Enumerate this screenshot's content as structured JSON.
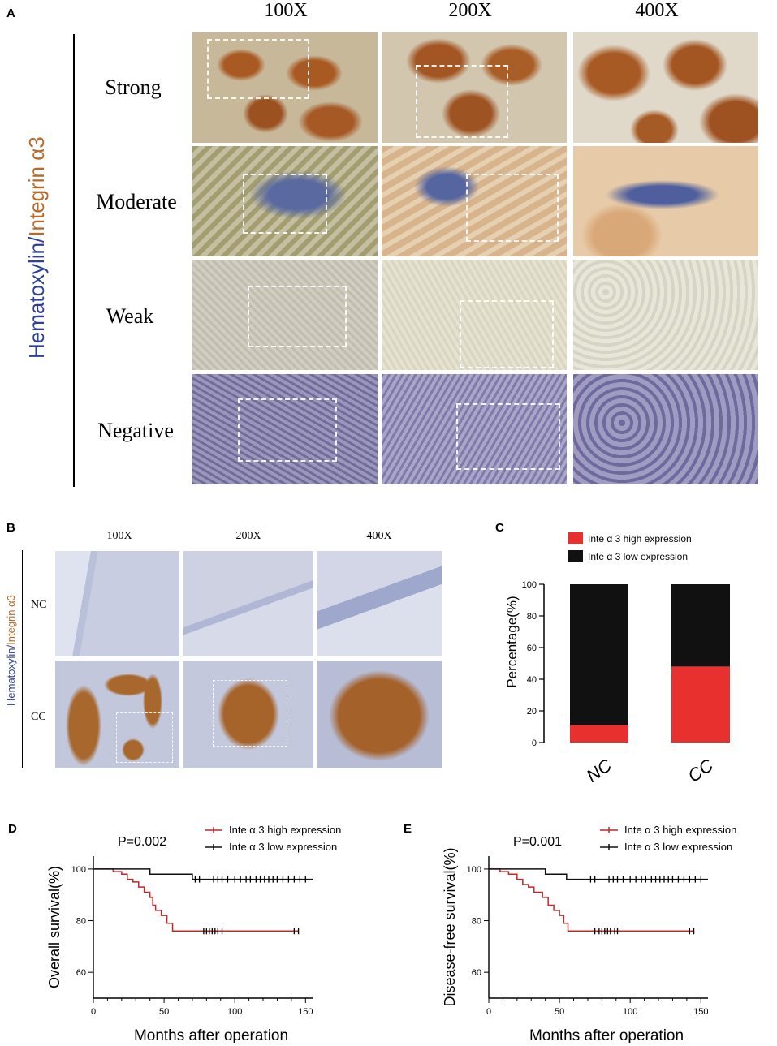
{
  "panelA": {
    "letter": "A",
    "stain_label_blue": "Hematoxylin/",
    "stain_label_brown": "Integrin α3",
    "columns": [
      "100X",
      "200X",
      "400X"
    ],
    "rows": [
      "Strong",
      "Moderate",
      "Weak",
      "Negative"
    ]
  },
  "panelB": {
    "letter": "B",
    "stain_label_blue": "Hematoxylin/",
    "stain_label_brown": "Integrin α3",
    "columns": [
      "100X",
      "200X",
      "400X"
    ],
    "rows": [
      "NC",
      "CC"
    ]
  },
  "colors": {
    "hematoxylin_blue": "#2b3f9c",
    "integrin_brown": "#b86a2a",
    "high_expression": "#e8312f",
    "low_expression": "#111111",
    "curve_high": "#c0282a",
    "curve_low": "#111111"
  },
  "chart_data": [
    {
      "panel": "C",
      "type": "bar",
      "stacked": true,
      "categories": [
        "NC",
        "CC"
      ],
      "series": [
        {
          "name": "Inte α 3 high expression",
          "values": [
            11,
            48
          ]
        },
        {
          "name": "Inte α 3 low expression",
          "values": [
            89,
            52
          ]
        }
      ],
      "xlabel": "",
      "ylabel": "Percentage(%)",
      "ylim": [
        0,
        100
      ],
      "yticks": [
        0,
        20,
        40,
        60,
        80,
        100
      ],
      "legend": "top"
    },
    {
      "panel": "D",
      "type": "line",
      "style": "kaplan-meier",
      "annotation": "P=0.002",
      "xlabel": "Months after operation",
      "ylabel": "Overall survival(%)",
      "xlim": [
        0,
        155
      ],
      "ylim": [
        50,
        105
      ],
      "xticks": [
        0,
        50,
        100,
        150
      ],
      "yticks": [
        60,
        80,
        100
      ],
      "legend": "top-right",
      "series": [
        {
          "name": "Inte α 3 high expression",
          "x": [
            0,
            14,
            20,
            24,
            28,
            32,
            36,
            40,
            42,
            44,
            48,
            52,
            56,
            145
          ],
          "y": [
            100,
            99,
            98,
            96,
            95,
            93,
            91,
            89,
            86,
            84,
            82,
            79,
            76,
            76
          ],
          "censored_x": [
            78,
            80,
            82,
            84,
            86,
            88,
            91,
            142,
            145
          ],
          "censored_y": 76
        },
        {
          "name": "Inte α 3 low expression",
          "x": [
            0,
            40,
            70,
            155
          ],
          "y": [
            100,
            98,
            96,
            96
          ],
          "censored_x": [
            72,
            75,
            85,
            88,
            91,
            95,
            100,
            104,
            108,
            111,
            115,
            118,
            121,
            124,
            127,
            130,
            134,
            138,
            142,
            146,
            150
          ],
          "censored_y": 96
        }
      ]
    },
    {
      "panel": "E",
      "type": "line",
      "style": "kaplan-meier",
      "annotation": "P=0.001",
      "xlabel": "Months after operation",
      "ylabel": "Disease-free survival(%)",
      "xlim": [
        0,
        155
      ],
      "ylim": [
        50,
        105
      ],
      "xticks": [
        0,
        50,
        100,
        150
      ],
      "yticks": [
        60,
        80,
        100
      ],
      "legend": "top-right",
      "series": [
        {
          "name": "Inte α 3 high expression",
          "x": [
            0,
            8,
            14,
            20,
            24,
            28,
            32,
            38,
            42,
            46,
            50,
            53,
            56,
            145
          ],
          "y": [
            100,
            99,
            98,
            96,
            94,
            93,
            91,
            89,
            86,
            84,
            82,
            79,
            76,
            76
          ],
          "censored_x": [
            75,
            78,
            80,
            82,
            84,
            86,
            89,
            91,
            142,
            145
          ],
          "censored_y": 76
        },
        {
          "name": "Inte α 3 low expression",
          "x": [
            0,
            40,
            55,
            155
          ],
          "y": [
            100,
            98,
            96,
            96
          ],
          "censored_x": [
            72,
            75,
            85,
            88,
            91,
            95,
            100,
            104,
            108,
            111,
            115,
            118,
            121,
            124,
            127,
            130,
            134,
            138,
            142,
            146,
            150
          ],
          "censored_y": 96
        }
      ]
    }
  ]
}
